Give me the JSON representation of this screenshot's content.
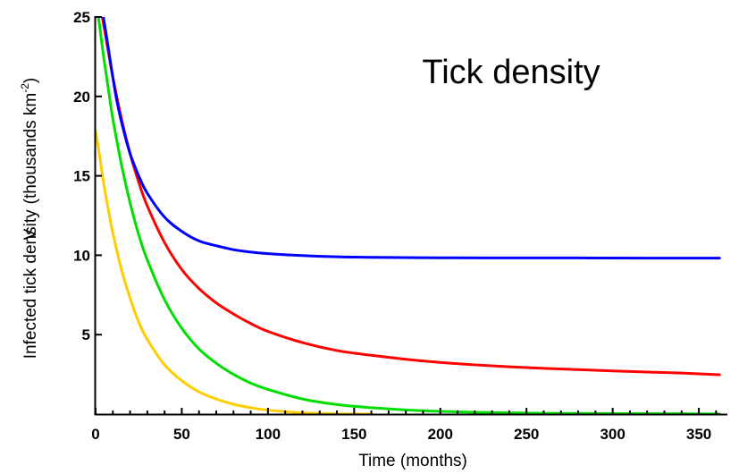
{
  "chart_data": {
    "type": "line",
    "title": "Tick density",
    "xlabel": "Time (months)",
    "ylabel": {
      "main": "Infected tick density",
      "unit_open": "(thousands km",
      "unit_sup": "-2",
      "unit_close": ")",
      "overlap_glyph": "V"
    },
    "xlim": [
      0,
      365
    ],
    "ylim": [
      0,
      25
    ],
    "x_ticks": [
      0,
      50,
      100,
      150,
      200,
      250,
      300,
      350
    ],
    "y_ticks": [
      5,
      10,
      15,
      20,
      25
    ],
    "x_minor_step": 10,
    "grid": false,
    "legend": "none",
    "series": [
      {
        "color": "#ff0000",
        "x": [
          0,
          2,
          4,
          6,
          8,
          10,
          15,
          20,
          25,
          30,
          40,
          50,
          60,
          70,
          80,
          90,
          100,
          120,
          140,
          160,
          180,
          200,
          220,
          240,
          260,
          280,
          300,
          320,
          340,
          362
        ],
        "y": [
          26.5,
          25.8,
          24.9,
          23.7,
          22.4,
          21.2,
          18.6,
          16.4,
          14.6,
          13.1,
          10.8,
          9.1,
          7.9,
          7.0,
          6.3,
          5.7,
          5.2,
          4.5,
          4.0,
          3.7,
          3.45,
          3.25,
          3.1,
          2.98,
          2.88,
          2.8,
          2.72,
          2.65,
          2.58,
          2.48
        ]
      },
      {
        "color": "#00dd00",
        "x": [
          0,
          2,
          4,
          6,
          8,
          10,
          15,
          20,
          25,
          30,
          40,
          50,
          60,
          70,
          80,
          90,
          100,
          120,
          140,
          160,
          180,
          200,
          220,
          240,
          260,
          280,
          300,
          320,
          340,
          362
        ],
        "y": [
          26.0,
          24.7,
          23.0,
          21.5,
          20.0,
          18.6,
          15.7,
          13.3,
          11.3,
          9.7,
          7.2,
          5.4,
          4.1,
          3.2,
          2.5,
          1.95,
          1.55,
          0.95,
          0.6,
          0.4,
          0.26,
          0.17,
          0.11,
          0.08,
          0.05,
          0.04,
          0.03,
          0.02,
          0.02,
          0.01
        ]
      },
      {
        "color": "#ffcc00",
        "x": [
          0,
          2,
          4,
          6,
          8,
          10,
          15,
          20,
          25,
          30,
          40,
          50,
          60,
          70,
          80,
          90,
          100,
          120,
          140,
          160
        ],
        "y": [
          17.8,
          16.5,
          15.0,
          13.7,
          12.5,
          11.4,
          9.1,
          7.3,
          5.8,
          4.7,
          3.1,
          2.1,
          1.4,
          0.95,
          0.62,
          0.4,
          0.25,
          0.08,
          0.02,
          0.0
        ]
      },
      {
        "color": "#0000ff",
        "x": [
          4.5,
          6,
          8,
          10,
          12,
          15,
          20,
          25,
          30,
          40,
          50,
          60,
          70,
          80,
          90,
          100,
          120,
          140,
          160,
          180,
          200,
          240,
          280,
          320,
          362
        ],
        "y": [
          25.0,
          24.0,
          22.6,
          21.2,
          19.9,
          18.4,
          16.4,
          15.0,
          13.9,
          12.4,
          11.5,
          10.9,
          10.6,
          10.35,
          10.2,
          10.1,
          9.98,
          9.9,
          9.87,
          9.85,
          9.84,
          9.83,
          9.83,
          9.82,
          9.82
        ]
      }
    ]
  }
}
